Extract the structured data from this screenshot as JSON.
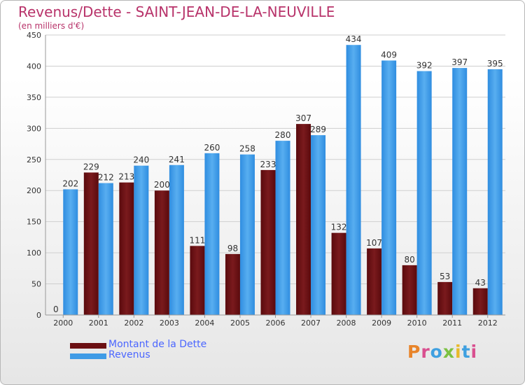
{
  "title": "Revenus/Dette - SAINT-JEAN-DE-LA-NEUVILLE",
  "subtitle": "(en milliers d'€)",
  "colors": {
    "dette": "#6b0f12",
    "revenus": "#3f9be6",
    "title": "#b8336a",
    "legend_text": "#4b66ff"
  },
  "legend": {
    "dette_label": "Montant de la Dette",
    "revenus_label": "Revenus"
  },
  "logo_text": "Proxiti",
  "chart_data": {
    "type": "bar",
    "title": "Revenus/Dette - SAINT-JEAN-DE-LA-NEUVILLE",
    "ylabel": "(en milliers d'€)",
    "xlabel": "",
    "categories": [
      "2000",
      "2001",
      "2002",
      "2003",
      "2004",
      "2005",
      "2006",
      "2007",
      "2008",
      "2009",
      "2010",
      "2011",
      "2012"
    ],
    "series": [
      {
        "name": "Montant de la Dette",
        "values": [
          0,
          229,
          213,
          200,
          111,
          98,
          233,
          307,
          132,
          107,
          80,
          53,
          43
        ]
      },
      {
        "name": "Revenus",
        "values": [
          202,
          212,
          240,
          241,
          260,
          258,
          280,
          289,
          434,
          409,
          392,
          397,
          395
        ]
      }
    ],
    "ylim": [
      0,
      450
    ],
    "yticks": [
      0,
      50,
      100,
      150,
      200,
      250,
      300,
      350,
      400,
      450
    ],
    "grid": true,
    "legend_position": "bottom-left"
  }
}
